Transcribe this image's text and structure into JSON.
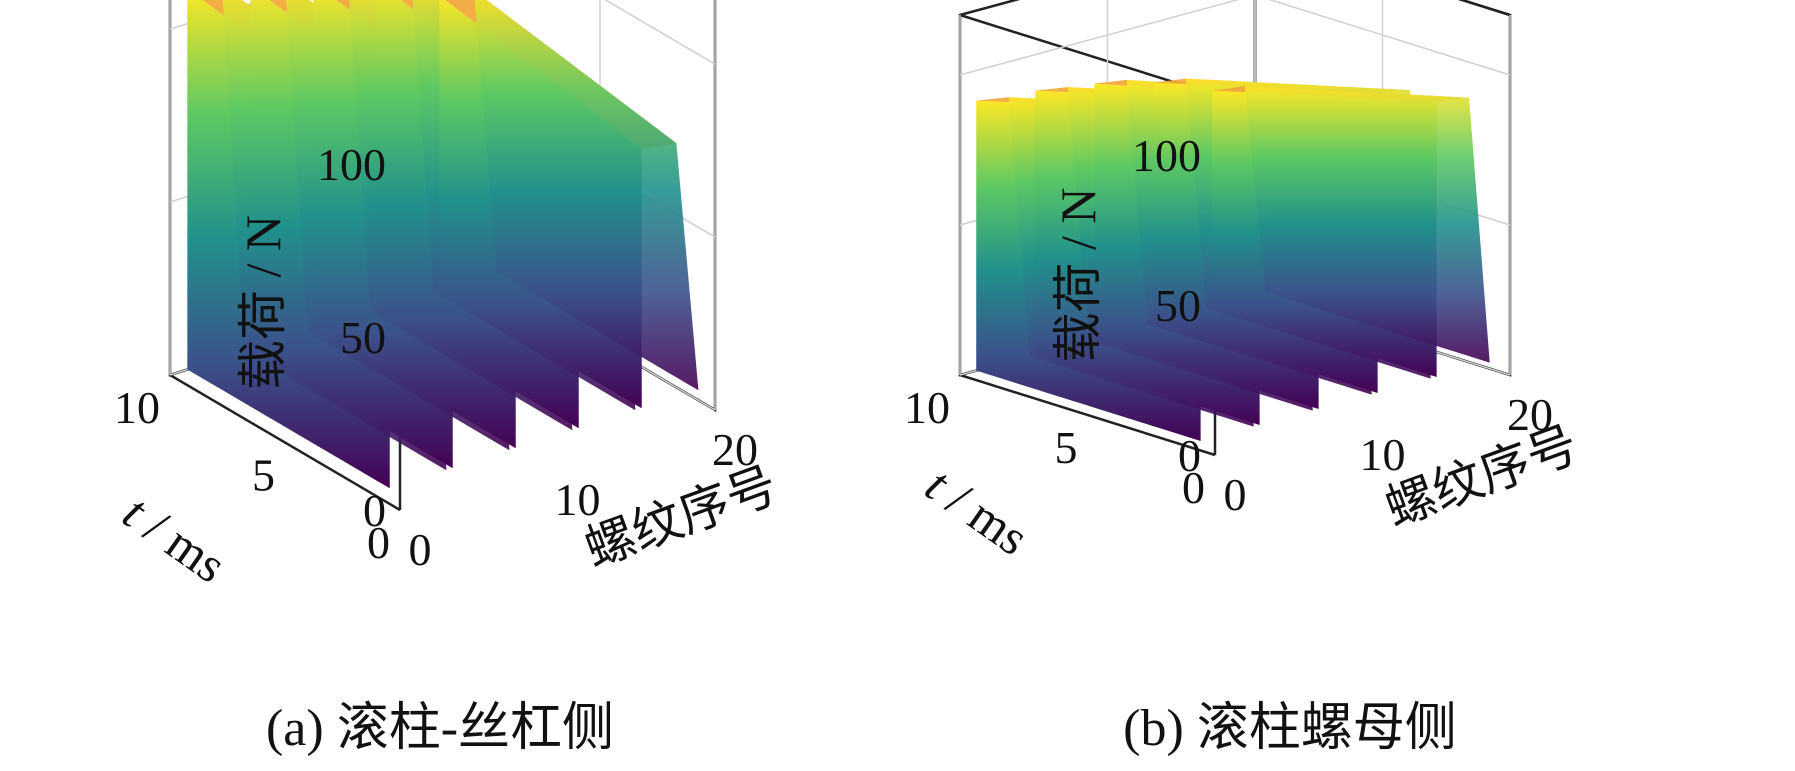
{
  "chart_data": [
    {
      "type": "surface3d",
      "caption": "(a)  滚柱-丝杠侧",
      "zlabel": "载荷 / N",
      "ylabel_var": "t",
      "ylabel_unit": " / ms",
      "xlabel": "螺纹序号",
      "zlim": [
        0,
        120
      ],
      "xlim": [
        0,
        20
      ],
      "ylim": [
        0,
        10
      ],
      "z_ticks": [
        0,
        50,
        100
      ],
      "x_ticks": [
        0,
        10,
        20
      ],
      "y_ticks": [
        0,
        5,
        10
      ],
      "colormap": [
        "#440154",
        "#3b528b",
        "#21918c",
        "#5ec962",
        "#fde725"
      ],
      "grid": true,
      "peaks": [
        {
          "x": 2.5,
          "z_start": 110,
          "z_end": 102
        },
        {
          "x": 6.5,
          "z_start": 105,
          "z_end": 97
        },
        {
          "x": 10.5,
          "z_start": 100,
          "z_end": 92
        },
        {
          "x": 14.5,
          "z_start": 95,
          "z_end": 84
        },
        {
          "x": 18.5,
          "z_start": 85,
          "z_end": 75
        }
      ]
    },
    {
      "type": "surface3d",
      "caption": "(b)  滚柱螺母侧",
      "zlabel": "载荷 / N",
      "ylabel_var": "t",
      "ylabel_unit": " / ms",
      "xlabel": "螺纹序号",
      "zlim": [
        0,
        120
      ],
      "xlim": [
        0,
        20
      ],
      "ylim": [
        0,
        10
      ],
      "z_ticks": [
        0,
        50,
        100
      ],
      "x_ticks": [
        0,
        10,
        20
      ],
      "y_ticks": [
        0,
        5,
        10
      ],
      "colormap": [
        "#440154",
        "#3b528b",
        "#21918c",
        "#5ec962",
        "#fde725"
      ],
      "grid": true,
      "peaks": [
        {
          "x": 2.5,
          "z_start": 90,
          "z_end": 110
        },
        {
          "x": 6.5,
          "z_start": 88,
          "z_end": 108
        },
        {
          "x": 10.5,
          "z_start": 85,
          "z_end": 104
        },
        {
          "x": 14.5,
          "z_start": 80,
          "z_end": 100
        },
        {
          "x": 18.5,
          "z_start": 72,
          "z_end": 92
        }
      ]
    }
  ]
}
